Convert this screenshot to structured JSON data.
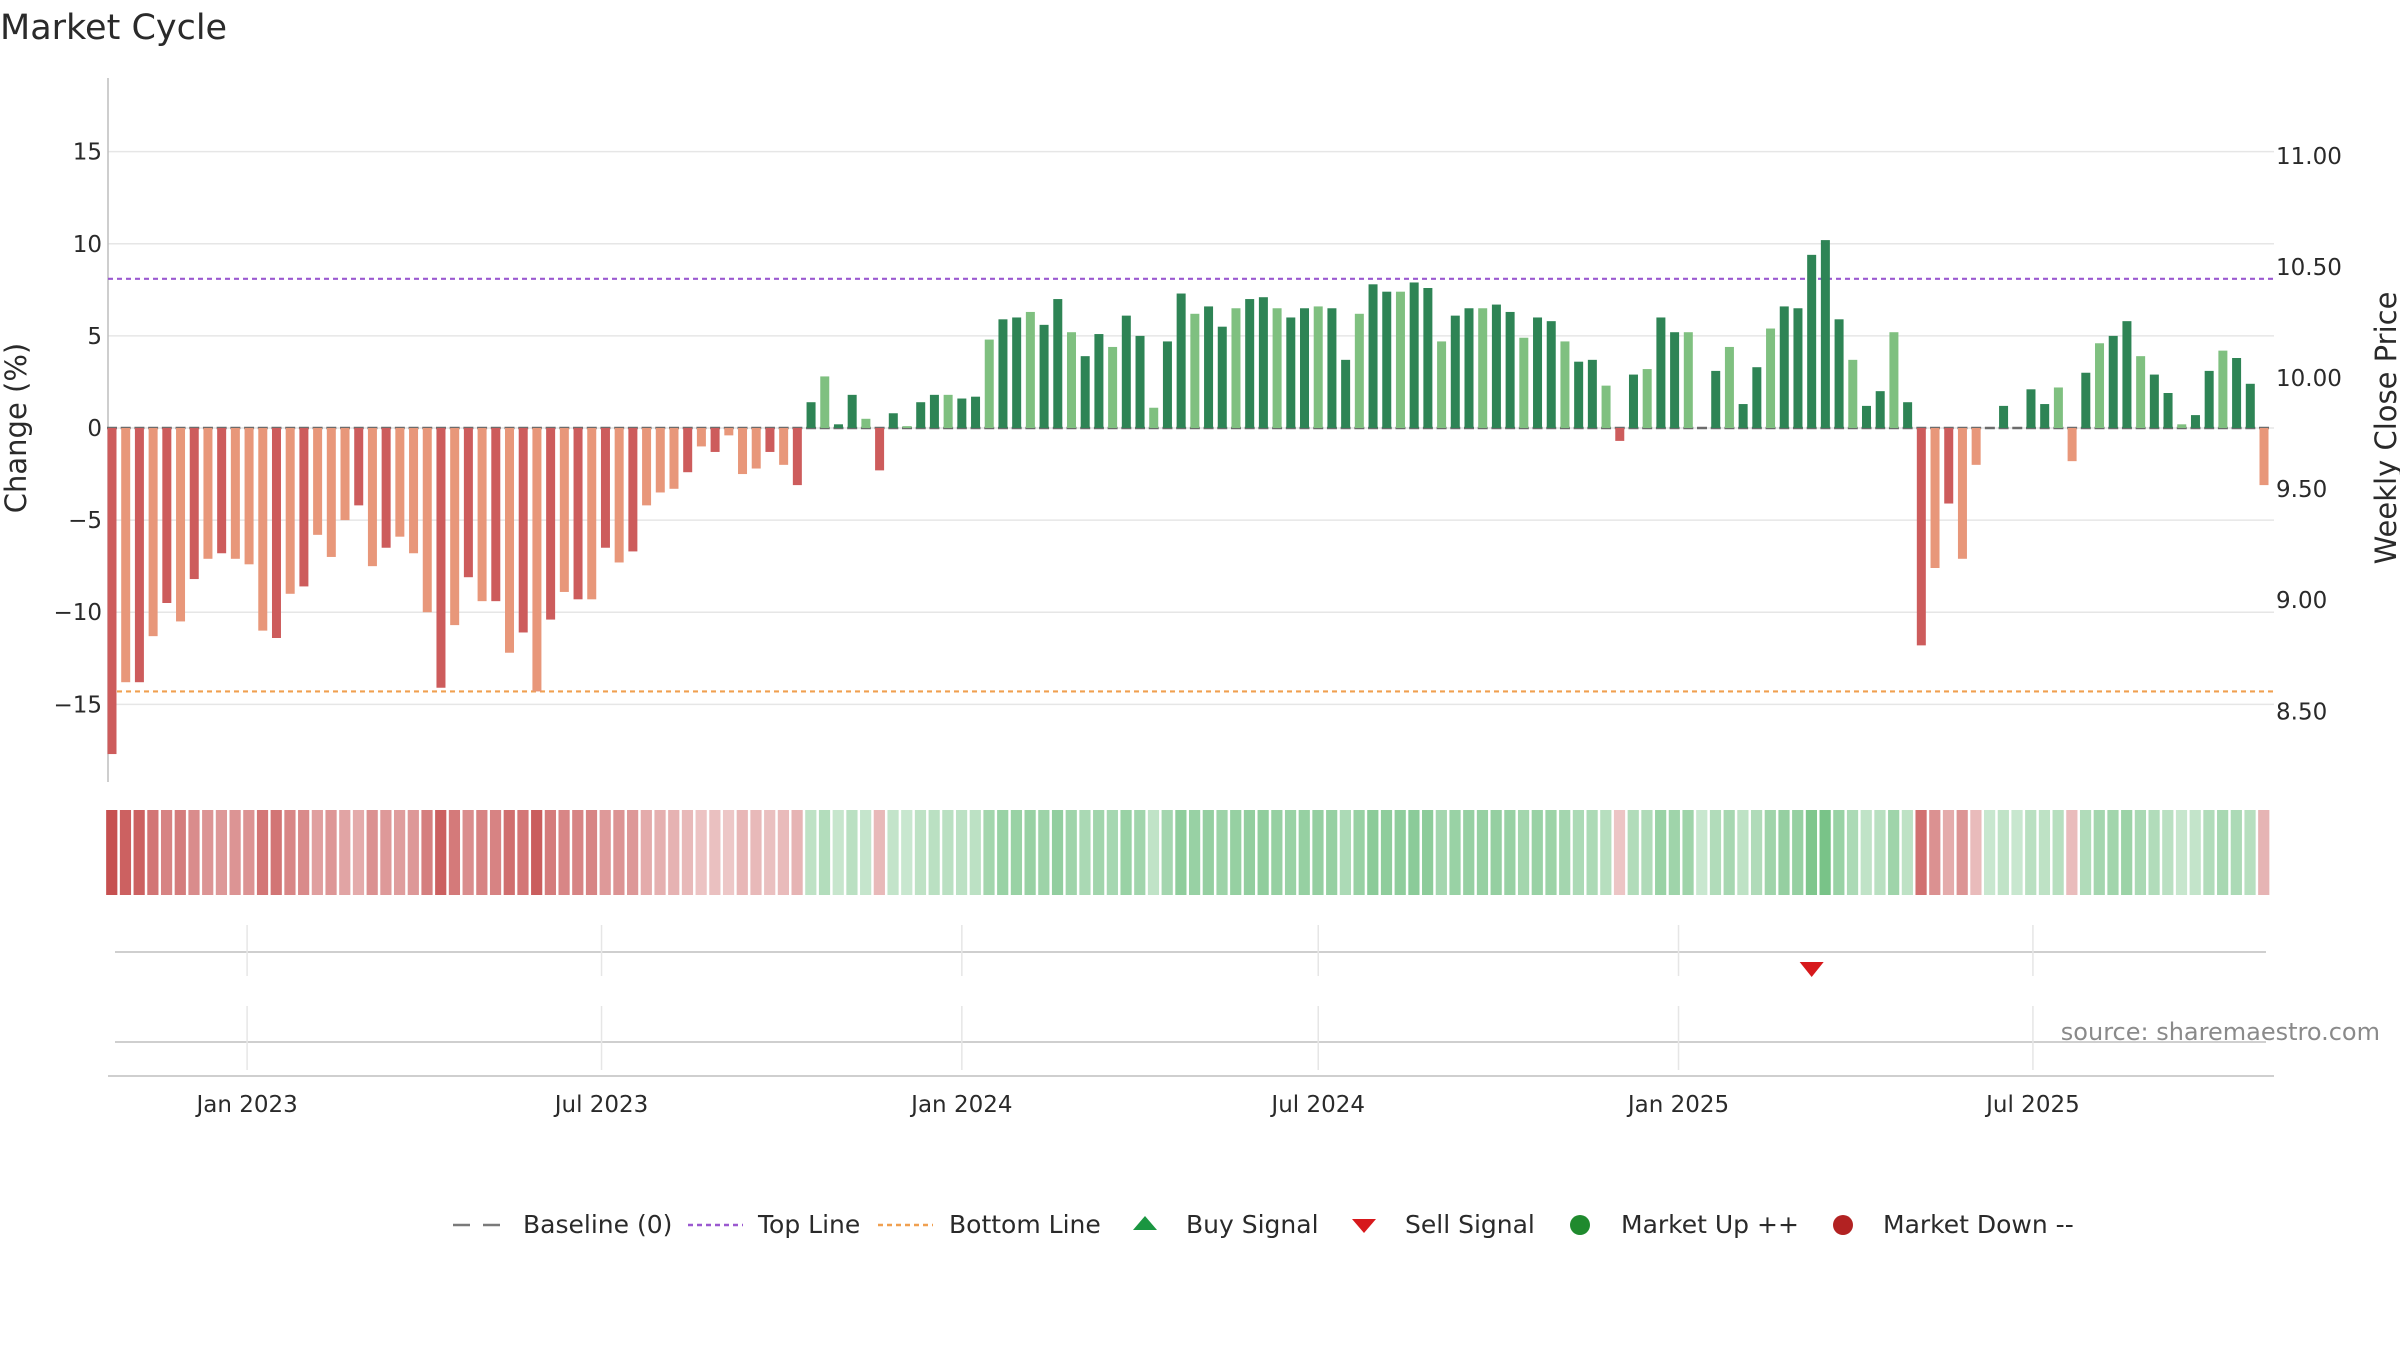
{
  "chart_data": {
    "type": "bar",
    "title": "Market Cycle",
    "ylabel": "Change (%)",
    "y2label": "Weekly Close Price",
    "source": "source: sharemaestro.com",
    "ylim": [
      -19,
      19
    ],
    "y_ticks": [
      "15",
      "10",
      "5",
      "0",
      "−5",
      "−10",
      "−15"
    ],
    "y_tick_values": [
      15,
      10,
      5,
      0,
      -5,
      -10,
      -15
    ],
    "y2_ticks": [
      "11.00",
      "10.50",
      "10.00",
      "9.50",
      "9.00",
      "8.50"
    ],
    "y2_tick_values": [
      11.0,
      10.5,
      10.0,
      9.5,
      9.0,
      8.5
    ],
    "y2lim": [
      8.2,
      11.35
    ],
    "x_start": "2022-10-24",
    "x_ticks": [
      "Jan 2023",
      "Jul 2023",
      "Jan 2024",
      "Jul 2024",
      "Jan 2025",
      "Jul 2025"
    ],
    "x_tick_dates": [
      "2023-01-01",
      "2023-07-01",
      "2024-01-01",
      "2024-07-01",
      "2025-01-01",
      "2025-07-01"
    ],
    "top_line": 8.1,
    "bottom_line": -14.3,
    "grid": true,
    "legend_position": "bottom",
    "colors": {
      "up_strong": "#2e8455",
      "up_light": "#7fc080",
      "down_strong": "#cd5c5c",
      "down_light": "#e8977a",
      "top_line": "#9b59d0",
      "bottom_line": "#f0a050",
      "buy_signal": "#1a9641",
      "sell_signal": "#d7191c",
      "market_up": "#1f8a2e",
      "market_down": "#b22222"
    },
    "series": [
      {
        "values": [
          -17.7,
          -13.8,
          -13.8,
          -11.3,
          -9.5,
          -10.5,
          -8.2,
          -7.1,
          -6.8,
          -7.1,
          -7.4,
          -11,
          -11.4,
          -9,
          -8.6,
          -5.8,
          -7,
          -5,
          -4.2,
          -7.5,
          -6.5,
          -5.9,
          -6.8,
          -10,
          -14.1,
          -10.7,
          -8.1,
          -9.4,
          -9.4,
          -12.2,
          -11.1,
          -14.3,
          -10.4,
          -8.9,
          -9.3,
          -9.3,
          -6.5,
          -7.3,
          -6.7,
          -4.2,
          -3.5,
          -3.3,
          -2.4,
          -1,
          -1.3,
          -0.4,
          -2.5,
          -2.2,
          -1.3,
          -2,
          -3.1,
          1.4,
          2.8,
          0.2,
          1.8,
          0.5,
          -2.3,
          0.8,
          0.1,
          1.4,
          1.8,
          1.8,
          1.6,
          1.7,
          4.8,
          5.9,
          6,
          6.3,
          5.6,
          7,
          5.2,
          3.9,
          5.1,
          4.4,
          6.1,
          5,
          1.1,
          4.7,
          7.3,
          6.2,
          6.6,
          5.5,
          6.5,
          7,
          7.1,
          6.5,
          6,
          6.5,
          6.6,
          6.5,
          3.7,
          6.2,
          7.8,
          7.4,
          7.4,
          7.9,
          7.6,
          4.7,
          6.1,
          6.5,
          6.5,
          6.7,
          6.3,
          4.9,
          6,
          5.8,
          4.7,
          3.6,
          3.7,
          2.3,
          -0.7,
          2.9,
          3.2,
          6,
          5.2,
          5.2,
          0,
          3.1,
          4.4,
          1.3,
          3.3,
          5.4,
          6.6,
          6.5,
          9.4,
          10.2,
          5.9,
          3.7,
          1.2,
          2,
          5.2,
          1.4,
          -11.8,
          -7.6,
          -4.1,
          -7.1,
          -2,
          0,
          1.2,
          0,
          2.1,
          1.3,
          2.2,
          -1.8,
          3,
          4.6,
          5,
          5.8,
          3.9,
          2.9,
          1.9,
          0.2,
          0.7,
          3.1,
          4.2,
          3.8,
          2.4,
          -3.1
        ]
      }
    ],
    "signals": [
      {
        "type": "sell",
        "label": "Sell Signal",
        "date": "2025-03-10"
      }
    ],
    "legend": [
      {
        "label": "Baseline (0)",
        "icon": "dash-line"
      },
      {
        "label": "Top Line",
        "icon": "dotted-line-purple"
      },
      {
        "label": "Bottom Line",
        "icon": "dotted-line-orange"
      },
      {
        "label": "Buy Signal",
        "icon": "triangle-up"
      },
      {
        "label": "Sell Signal",
        "icon": "triangle-down"
      },
      {
        "label": "Market Up ++",
        "icon": "circle-green"
      },
      {
        "label": "Market Down --",
        "icon": "circle-red"
      }
    ]
  }
}
